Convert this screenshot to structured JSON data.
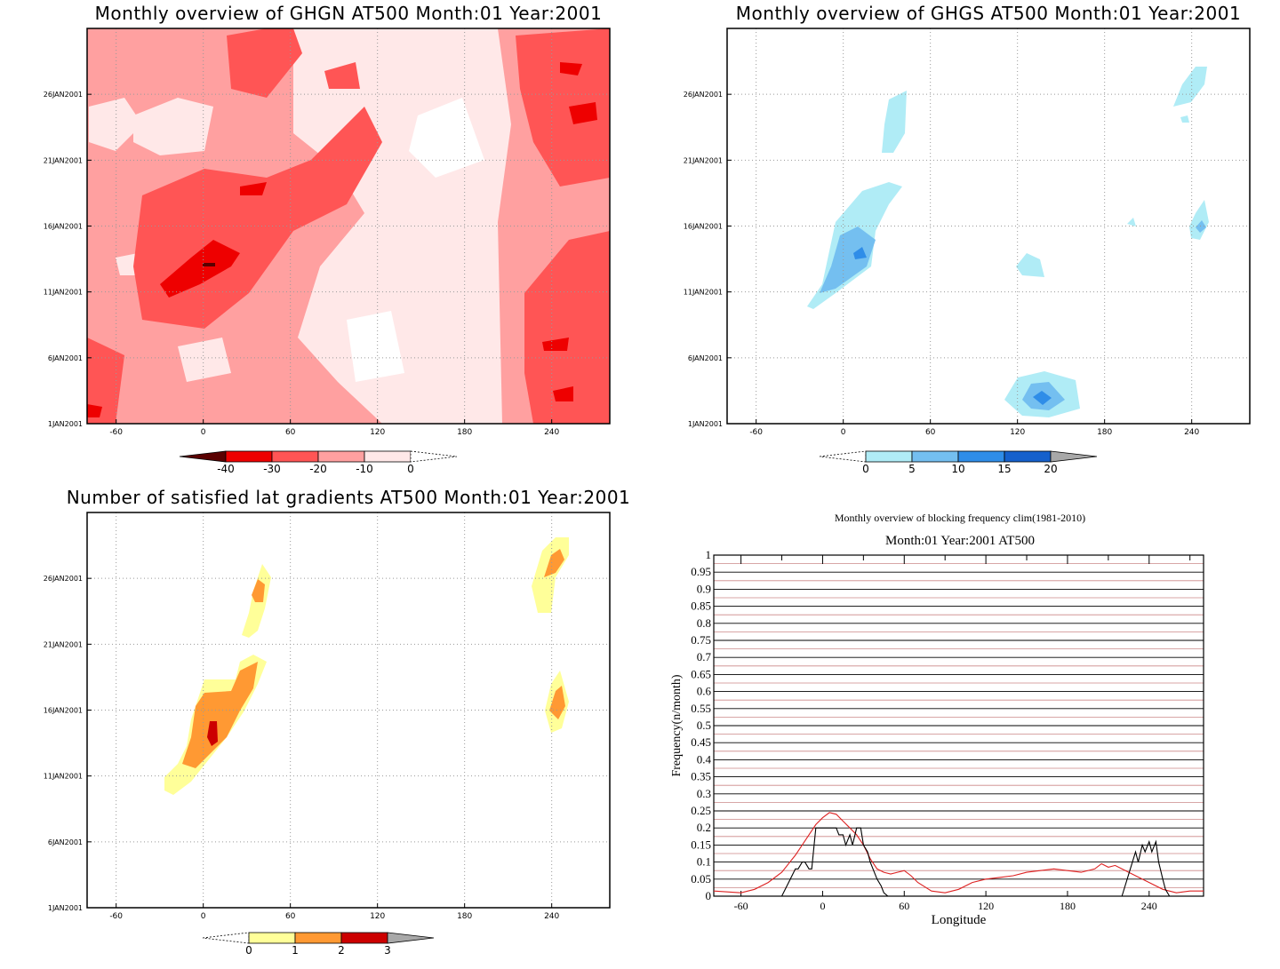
{
  "colors": {
    "reds": [
      "#5a0000",
      "#ee0000",
      "#ff5555",
      "#ffa0a0",
      "#ffe8e8"
    ],
    "blues": [
      "#b0ecf6",
      "#74bff0",
      "#2f8de8",
      "#1560cc",
      "#a8a8a8"
    ],
    "yellows": [
      "#ffff99",
      "#ff9933",
      "#cc0000",
      "#a8a8a8"
    ],
    "clim_line": "#dd2222",
    "obs_line": "#000000"
  },
  "chart_data": [
    {
      "type": "heatmap",
      "title": "Monthly overview of GHGN AT500 Month:01 Year:2001",
      "xlim": [
        -80,
        280
      ],
      "x_ticks": [
        -60,
        0,
        60,
        120,
        180,
        240
      ],
      "y_ticks": [
        "1JAN2001",
        "6JAN2001",
        "11JAN2001",
        "16JAN2001",
        "21JAN2001",
        "26JAN2001"
      ],
      "y_tick_days": [
        1,
        6,
        11,
        16,
        21,
        26
      ],
      "colorbar": {
        "ticks": [
          "-40",
          "-30",
          "-20",
          "-10",
          "0"
        ],
        "colors": [
          "#5a0000",
          "#ee0000",
          "#ff5555",
          "#ffa0a0",
          "#ffe8e8"
        ]
      }
    },
    {
      "type": "heatmap",
      "title": "Monthly overview of GHGS AT500 Month:01 Year:2001",
      "xlim": [
        -80,
        280
      ],
      "x_ticks": [
        -60,
        0,
        60,
        120,
        180,
        240
      ],
      "y_ticks": [
        "1JAN2001",
        "6JAN2001",
        "11JAN2001",
        "16JAN2001",
        "21JAN2001",
        "26JAN2001"
      ],
      "y_tick_days": [
        1,
        6,
        11,
        16,
        21,
        26
      ],
      "colorbar": {
        "ticks": [
          "0",
          "5",
          "10",
          "15",
          "20"
        ],
        "colors": [
          "#b0ecf6",
          "#74bff0",
          "#2f8de8",
          "#1560cc"
        ]
      }
    },
    {
      "type": "heatmap",
      "title": "Number of satisfied lat gradients AT500 Month:01 Year:2001",
      "xlim": [
        -80,
        280
      ],
      "x_ticks": [
        -60,
        0,
        60,
        120,
        180,
        240
      ],
      "y_ticks": [
        "1JAN2001",
        "6JAN2001",
        "11JAN2001",
        "16JAN2001",
        "21JAN2001",
        "26JAN2001"
      ],
      "y_tick_days": [
        1,
        6,
        11,
        16,
        21,
        26
      ],
      "colorbar": {
        "ticks": [
          "0",
          "1",
          "2",
          "3"
        ],
        "colors": [
          "#ffff99",
          "#ff9933",
          "#cc0000"
        ]
      }
    },
    {
      "type": "line",
      "title": "Monthly overview of blocking frequency clim(1981-2010)",
      "subtitle": "Month:01 Year:2001  AT500",
      "xlabel": "Longitude",
      "ylabel": "Frequency(n/month)",
      "xlim": [
        -80,
        280
      ],
      "ylim": [
        0,
        1
      ],
      "x_ticks": [
        -60,
        0,
        60,
        120,
        180,
        240
      ],
      "y_ticks": [
        "0",
        "0.05",
        "0.1",
        "0.15",
        "0.2",
        "0.25",
        "0.3",
        "0.35",
        "0.4",
        "0.45",
        "0.5",
        "0.55",
        "0.6",
        "0.65",
        "0.7",
        "0.75",
        "0.8",
        "0.85",
        "0.9",
        "0.95",
        "1"
      ],
      "series": [
        {
          "x": [
            -80,
            -60,
            -50,
            -40,
            -30,
            -20,
            -10,
            -5,
            0,
            5,
            10,
            15,
            20,
            25,
            30,
            35,
            40,
            45,
            50,
            55,
            60,
            65,
            70,
            80,
            90,
            100,
            110,
            120,
            130,
            140,
            150,
            160,
            170,
            180,
            190,
            200,
            205,
            210,
            215,
            220,
            230,
            240,
            250,
            260,
            270,
            280
          ],
          "values": [
            0.015,
            0.01,
            0.02,
            0.04,
            0.07,
            0.12,
            0.18,
            0.21,
            0.23,
            0.245,
            0.24,
            0.22,
            0.2,
            0.18,
            0.15,
            0.11,
            0.08,
            0.07,
            0.065,
            0.07,
            0.075,
            0.06,
            0.04,
            0.015,
            0.01,
            0.02,
            0.04,
            0.05,
            0.055,
            0.06,
            0.07,
            0.075,
            0.08,
            0.075,
            0.07,
            0.08,
            0.095,
            0.085,
            0.09,
            0.08,
            0.06,
            0.04,
            0.02,
            0.01,
            0.015,
            0.015
          ]
        },
        {
          "x": [
            -80,
            -30,
            -25,
            -20,
            -18,
            -15,
            -13,
            -10,
            -8,
            -5,
            0,
            5,
            10,
            12,
            15,
            17,
            20,
            22,
            25,
            28,
            30,
            33,
            35,
            38,
            40,
            43,
            45,
            48,
            210,
            220,
            230,
            232,
            235,
            237,
            240,
            242,
            245,
            247,
            250,
            252,
            255,
            280
          ],
          "values": [
            0,
            0,
            0.04,
            0.08,
            0.08,
            0.1,
            0.1,
            0.08,
            0.08,
            0.2,
            0.2,
            0.2,
            0.2,
            0.18,
            0.18,
            0.15,
            0.18,
            0.15,
            0.2,
            0.2,
            0.15,
            0.13,
            0.1,
            0.07,
            0.05,
            0.03,
            0.01,
            0,
            0,
            0,
            0.13,
            0.1,
            0.15,
            0.13,
            0.16,
            0.13,
            0.16,
            0.1,
            0.05,
            0.02,
            0,
            0
          ]
        }
      ]
    }
  ]
}
